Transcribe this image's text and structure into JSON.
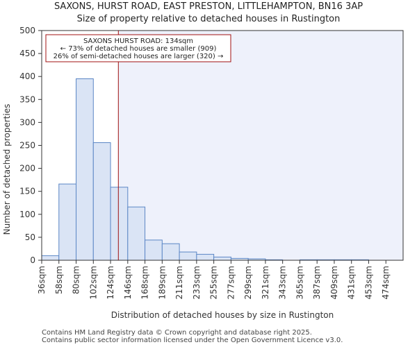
{
  "chart_data": {
    "type": "bar",
    "title": "SAXONS, HURST ROAD, EAST PRESTON, LITTLEHAMPTON, BN16 3AP",
    "subtitle": "Size of property relative to detached houses in Rustington",
    "xlabel": "Distribution of detached houses by size in Rustington",
    "ylabel": "Number of detached properties",
    "ylim": [
      0,
      500
    ],
    "yticks": [
      0,
      50,
      100,
      150,
      200,
      250,
      300,
      350,
      400,
      450,
      500
    ],
    "categories": [
      "36sqm",
      "58sqm",
      "80sqm",
      "102sqm",
      "124sqm",
      "146sqm",
      "168sqm",
      "189sqm",
      "211sqm",
      "233sqm",
      "255sqm",
      "277sqm",
      "299sqm",
      "321sqm",
      "343sqm",
      "365sqm",
      "387sqm",
      "409sqm",
      "431sqm",
      "453sqm",
      "474sqm"
    ],
    "values": [
      10,
      166,
      395,
      256,
      159,
      116,
      44,
      36,
      18,
      13,
      7,
      4,
      3,
      1,
      0,
      1,
      1,
      1,
      1,
      0,
      0
    ],
    "bin_edges": [
      36,
      58,
      80,
      102,
      124,
      146,
      168,
      189,
      211,
      233,
      255,
      277,
      299,
      321,
      343,
      365,
      387,
      409,
      431,
      453,
      474,
      496
    ],
    "property_line": 134,
    "annotation": {
      "line1": "SAXONS HURST ROAD: 134sqm",
      "line2": "← 73% of detached houses are smaller (909)",
      "line3": "26% of semi-detached houses are larger (320) →"
    },
    "colors": {
      "bar_fill": "#dae4f5",
      "bar_edge": "#5b86c5",
      "line": "#a01010",
      "shade": "#eef1fb"
    }
  },
  "footer": {
    "line1": "Contains HM Land Registry data © Crown copyright and database right 2025.",
    "line2": "Contains public sector information licensed under the Open Government Licence v3.0."
  }
}
